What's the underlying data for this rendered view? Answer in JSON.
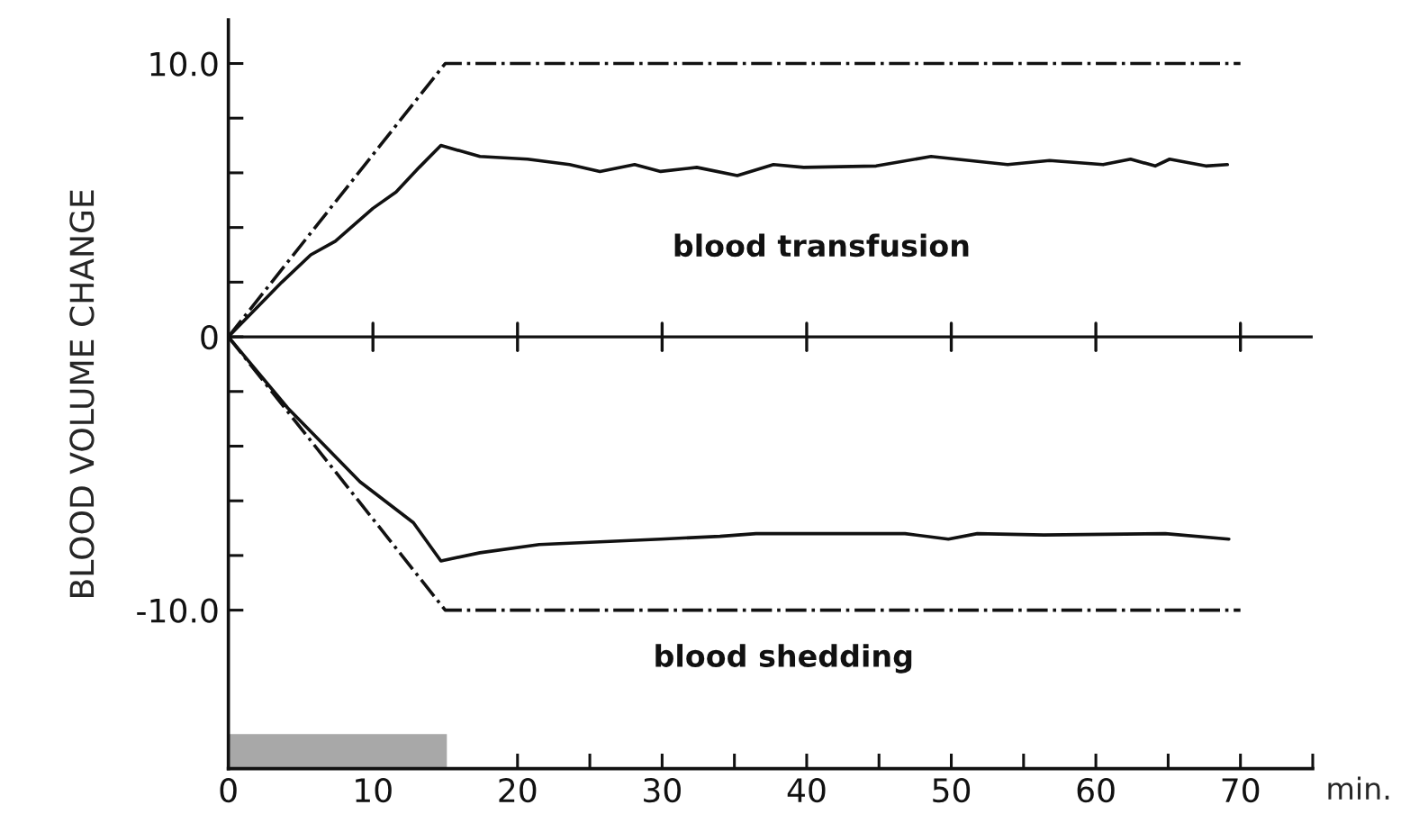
{
  "chart_data": {
    "type": "line",
    "ylabel": "BLOOD VOLUME CHANGE",
    "xlabel": "min.",
    "xlim": [
      0,
      75
    ],
    "ylim": [
      -15.8,
      11.6
    ],
    "xticks": [
      0,
      {
        "value": 5,
        "label": null
      },
      10,
      {
        "value": 15,
        "label": null
      },
      20,
      {
        "value": 25,
        "label": null
      },
      30,
      {
        "value": 35,
        "label": null
      },
      40,
      {
        "value": 45,
        "label": null
      },
      50,
      {
        "value": 55,
        "label": null
      },
      60,
      {
        "value": 65,
        "label": null
      },
      70,
      {
        "value": 75,
        "label": null
      }
    ],
    "yticks": [
      {
        "value": -10,
        "label": "-10.0"
      },
      {
        "value": -8,
        "label": null
      },
      {
        "value": -6,
        "label": null
      },
      {
        "value": -4,
        "label": null
      },
      {
        "value": -2,
        "label": null
      },
      0,
      {
        "value": 2,
        "label": null
      },
      {
        "value": 4,
        "label": null
      },
      {
        "value": 6,
        "label": null
      },
      {
        "value": 8,
        "label": null
      },
      {
        "value": 10,
        "label": "10.0"
      }
    ],
    "series": [
      {
        "color": "#111111",
        "line_style": "solid",
        "x": [
          0,
          3.7,
          5.7,
          7.4,
          10,
          11.6,
          13.2,
          14.7,
          17.4,
          20.7,
          23.6,
          25.7,
          28.1,
          29.9,
          32.4,
          35.2,
          37.7,
          39.8,
          44.8,
          48.6,
          53.9,
          56.8,
          60.5,
          62.4,
          64.1,
          65.1,
          67.6,
          69.1
        ],
        "values": [
          0,
          2.0,
          3.0,
          3.5,
          4.7,
          5.3,
          6.2,
          7.0,
          6.6,
          6.5,
          6.3,
          6.05,
          6.3,
          6.05,
          6.2,
          5.9,
          6.3,
          6.2,
          6.25,
          6.6,
          6.3,
          6.45,
          6.3,
          6.5,
          6.25,
          6.5,
          6.25,
          6.3
        ]
      },
      {
        "color": "#111111",
        "line_style": "solid",
        "x": [
          0,
          4.1,
          9.1,
          12.8,
          14.7,
          17.4,
          21.5,
          25.7,
          29.9,
          34,
          36.5,
          39.8,
          46.8,
          49.8,
          51.8,
          56.4,
          64.8,
          69.2
        ],
        "values": [
          0,
          -2.6,
          -5.3,
          -6.8,
          -8.2,
          -7.9,
          -7.6,
          -7.5,
          -7.4,
          -7.3,
          -7.2,
          -7.2,
          -7.2,
          -7.4,
          -7.2,
          -7.25,
          -7.2,
          -7.4
        ]
      },
      {
        "color": "#111111",
        "line_style": "dashdot",
        "x": [
          0,
          15,
          70
        ],
        "values": [
          0,
          10,
          10
        ]
      },
      {
        "color": "#111111",
        "line_style": "dashdot",
        "x": [
          0,
          15,
          70
        ],
        "values": [
          0,
          -10,
          -10
        ]
      }
    ],
    "ref_lines": [
      {
        "axis": "y",
        "value": 0,
        "color": "#111111"
      }
    ],
    "bands": [
      {
        "axis": "x",
        "from": 0,
        "to": 15,
        "color": "#a8a8a8"
      }
    ],
    "annotations": [
      "blood transfusion",
      "blood shedding"
    ],
    "grid": false,
    "legend": false
  }
}
